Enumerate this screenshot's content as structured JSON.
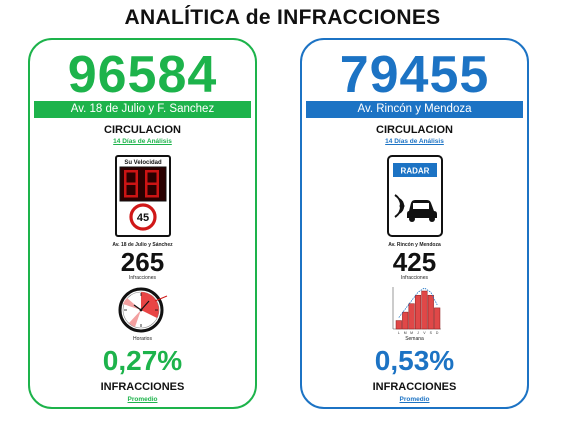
{
  "page": {
    "title": "ANALÍTICA de INFRACCIONES"
  },
  "cards": [
    {
      "total": "96584",
      "street": "Av. 18 de Julio y F. Sanchez",
      "section": "CIRCULACION",
      "period": "14 Días de Análisis",
      "device_type": "Su Velocidad",
      "speed_limit": "45",
      "device_caption": "Av. 18 de Julio y Sánchez",
      "infractions": "265",
      "infractions_label": "Infracciones",
      "icon_label": "Horarios",
      "percent": "0,27%",
      "percent_label": "INFRACCIONES",
      "average_link": "Promedio",
      "accent": "#1db34b"
    },
    {
      "total": "79455",
      "street": "Av. Rincón y Mendoza",
      "section": "CIRCULACION",
      "period": "14 Días de Análisis",
      "device_type": "RADAR",
      "device_caption": "Av. Rincón y Mendoza",
      "infractions": "425",
      "infractions_label": "Infracciones",
      "icon_label": "Semana",
      "percent": "0,53%",
      "percent_label": "INFRACCIONES",
      "average_link": "Promedio",
      "accent": "#1c73c4",
      "chart_data": {
        "type": "bar",
        "categories": [
          "L",
          "M",
          "M",
          "J",
          "V",
          "S",
          "D"
        ],
        "values": [
          2,
          4,
          6,
          8,
          9,
          8,
          5
        ]
      }
    }
  ]
}
